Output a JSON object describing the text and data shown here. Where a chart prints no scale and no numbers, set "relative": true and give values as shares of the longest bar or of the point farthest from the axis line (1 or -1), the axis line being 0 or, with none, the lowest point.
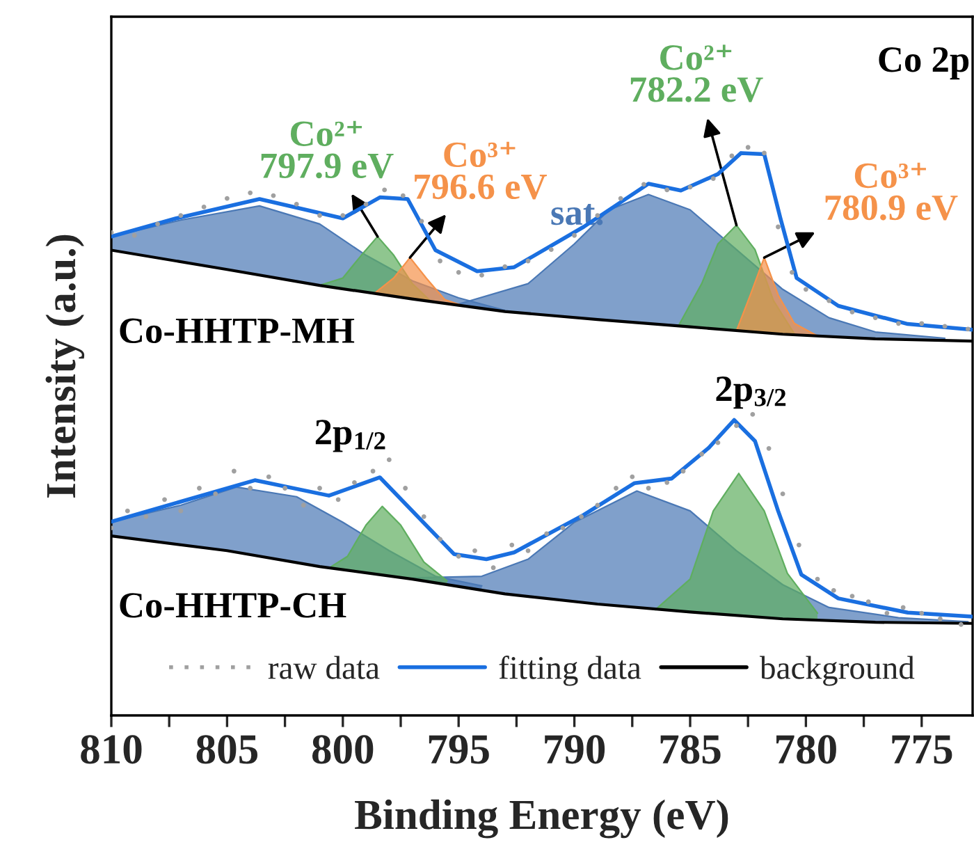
{
  "chart_data": {
    "type": "area",
    "relative": true,
    "xlabel": "Binding Energy (eV)",
    "ylabel": "Intensity (a.u.)",
    "xlim": [
      810,
      772.8
    ],
    "xticks": [
      810,
      {
        "value": 807.5,
        "label": null
      },
      805,
      {
        "value": 802.5,
        "label": null
      },
      800,
      {
        "value": 797.5,
        "label": null
      },
      795,
      {
        "value": 792.5,
        "label": null
      },
      790,
      {
        "value": 787.5,
        "label": null
      },
      785,
      {
        "value": 782.5,
        "label": null
      },
      780,
      {
        "value": 777.5,
        "label": null
      },
      775
    ],
    "tick_labels": "x",
    "grid": false,
    "legend": "bottom",
    "series": [
      {
        "color": "#4a78b5",
        "x": [
          810,
          807,
          803.6,
          801,
          799,
          797,
          795,
          793
        ],
        "values": [
          0.843,
          0.872,
          0.897,
          0.865,
          0.81,
          0.765,
          0.735,
          0.713
        ]
      },
      {
        "color": "#4a78b5",
        "x": [
          795,
          792,
          790,
          788.5,
          786.8,
          785,
          783,
          781,
          779,
          777,
          774
        ],
        "values": [
          0.724,
          0.76,
          0.83,
          0.89,
          0.917,
          0.89,
          0.82,
          0.75,
          0.7,
          0.675,
          0.664
        ]
      },
      {
        "color": "#5fae5f",
        "x": [
          801,
          800,
          799.2,
          798.5,
          797.8,
          797,
          796.2
        ],
        "values": [
          0.757,
          0.77,
          0.81,
          0.843,
          0.81,
          0.76,
          0.729
        ]
      },
      {
        "color": "#f5924a",
        "x": [
          798.6,
          797.8,
          797.1,
          796.4,
          795.6,
          794.8
        ],
        "values": [
          0.744,
          0.77,
          0.806,
          0.77,
          0.732,
          0.721
        ]
      },
      {
        "color": "#5fae5f",
        "x": [
          785.5,
          784.5,
          783.8,
          783,
          782.2,
          781.4,
          780.5
        ],
        "values": [
          0.686,
          0.76,
          0.83,
          0.863,
          0.82,
          0.73,
          0.672
        ]
      },
      {
        "color": "#f5924a",
        "x": [
          783,
          782.4,
          781.8,
          781.2,
          780.5,
          779.5
        ],
        "values": [
          0.677,
          0.74,
          0.806,
          0.74,
          0.69,
          0.668
        ]
      },
      {
        "color": "#4a78b5",
        "x": [
          810,
          807,
          804.6,
          802,
          800,
          798,
          796,
          794
        ],
        "values": [
          0.341,
          0.37,
          0.402,
          0.385,
          0.34,
          0.29,
          0.245,
          0.228
        ]
      },
      {
        "color": "#4a78b5",
        "x": [
          797,
          794,
          792,
          790,
          787.3,
          785,
          783,
          781,
          779,
          776,
          773
        ],
        "values": [
          0.242,
          0.245,
          0.275,
          0.34,
          0.395,
          0.36,
          0.29,
          0.23,
          0.19,
          0.172,
          0.165
        ]
      },
      {
        "color": "#5fae5f",
        "x": [
          800.5,
          799.8,
          799,
          798.3,
          797.5,
          796.5,
          795.5
        ],
        "values": [
          0.262,
          0.28,
          0.335,
          0.368,
          0.335,
          0.27,
          0.237
        ]
      },
      {
        "color": "#5fae5f",
        "x": [
          786.5,
          785,
          784,
          782.9,
          781.8,
          780.8,
          779.5
        ],
        "values": [
          0.186,
          0.24,
          0.36,
          0.426,
          0.36,
          0.25,
          0.18
        ]
      },
      {
        "type": "scatter",
        "name": "raw data",
        "color": "#a0a0a0",
        "x": [
          810,
          809,
          808,
          807,
          806,
          805,
          804,
          803,
          802,
          801,
          800,
          799,
          798.2,
          797.4,
          796.6,
          795.8,
          795,
          794,
          793,
          792,
          791,
          790,
          789,
          788,
          787,
          786,
          785,
          784,
          783.2,
          782.5,
          781.8,
          781.2,
          780.6,
          780,
          779,
          778,
          777,
          776,
          775,
          774,
          773
        ],
        "values": [
          0.85,
          0.845,
          0.865,
          0.88,
          0.895,
          0.91,
          0.92,
          0.915,
          0.9,
          0.88,
          0.88,
          0.9,
          0.925,
          0.915,
          0.87,
          0.8,
          0.78,
          0.775,
          0.79,
          0.8,
          0.82,
          0.845,
          0.88,
          0.91,
          0.935,
          0.925,
          0.93,
          0.945,
          0.985,
          1.0,
          0.99,
          0.86,
          0.78,
          0.75,
          0.73,
          0.71,
          0.7,
          0.69,
          0.69,
          0.685,
          0.68
        ]
      },
      {
        "type": "scatter",
        "color": "#a0a0a0",
        "x": [
          810,
          809.3,
          808.5,
          807.7,
          807,
          806.2,
          805.5,
          804.7,
          804,
          803.2,
          802.5,
          801.7,
          801,
          800.2,
          799.5,
          798.7,
          798,
          797.3,
          796.5,
          795.8,
          795,
          794.3,
          793.5,
          792.7,
          792,
          791.2,
          790.5,
          789.7,
          789,
          788.2,
          787.5,
          786.8,
          786,
          785.3,
          784.5,
          783.8,
          783,
          782.3,
          781.6,
          781,
          780.3,
          779.5,
          778.8,
          778,
          777.3,
          776.5,
          775.8,
          775,
          774.2,
          773.3
        ],
        "values": [
          0.33,
          0.36,
          0.35,
          0.38,
          0.36,
          0.4,
          0.39,
          0.43,
          0.4,
          0.42,
          0.4,
          0.37,
          0.4,
          0.38,
          0.41,
          0.43,
          0.45,
          0.4,
          0.35,
          0.31,
          0.28,
          0.29,
          0.26,
          0.3,
          0.29,
          0.32,
          0.33,
          0.35,
          0.37,
          0.4,
          0.42,
          0.4,
          0.41,
          0.43,
          0.46,
          0.48,
          0.51,
          0.53,
          0.47,
          0.39,
          0.3,
          0.24,
          0.22,
          0.21,
          0.2,
          0.18,
          0.19,
          0.18,
          0.17,
          0.16
        ]
      },
      {
        "type": "line",
        "name": "fitting data",
        "color": "#1a6fe0",
        "x": [
          810,
          807.2,
          803.6,
          800,
          798.4,
          797.2,
          796,
          794.2,
          792.6,
          789.6,
          786.8,
          785.4,
          783.8,
          782.8,
          781.8,
          781.1,
          780.4,
          778.6,
          775.6,
          772.8
        ],
        "values": [
          0.843,
          0.875,
          0.909,
          0.875,
          0.912,
          0.909,
          0.819,
          0.782,
          0.789,
          0.86,
          0.936,
          0.924,
          0.953,
          0.99,
          0.988,
          0.875,
          0.77,
          0.721,
          0.689,
          0.679
        ]
      },
      {
        "type": "line",
        "color": "#1a6fe0",
        "x": [
          810,
          803.8,
          800.6,
          798.4,
          795.2,
          793.8,
          792.6,
          789.6,
          787.4,
          785.8,
          784.2,
          783.1,
          782.2,
          781.2,
          780.2,
          778.6,
          775.6,
          772.8
        ],
        "values": [
          0.341,
          0.414,
          0.387,
          0.419,
          0.284,
          0.275,
          0.287,
          0.353,
          0.409,
          0.417,
          0.471,
          0.52,
          0.483,
          0.36,
          0.248,
          0.206,
          0.181,
          0.174
        ]
      },
      {
        "type": "line",
        "name": "background",
        "color": "#000000",
        "x": [
          810,
          805,
          801,
          797,
          793,
          789,
          785,
          781,
          777,
          772.8
        ],
        "values": [
          0.819,
          0.785,
          0.757,
          0.733,
          0.711,
          0.697,
          0.684,
          0.671,
          0.663,
          0.659
        ]
      },
      {
        "type": "line",
        "color": "#000000",
        "x": [
          810,
          805,
          801,
          797,
          793,
          789,
          785,
          781,
          777,
          772.8
        ],
        "values": [
          0.316,
          0.29,
          0.262,
          0.24,
          0.214,
          0.196,
          0.182,
          0.17,
          0.164,
          0.162
        ]
      }
    ],
    "annotations": [
      "Co 2p",
      {
        "text": "Co²⁺\n797.9 eV",
        "x": 798.5,
        "y": 0.843
      },
      {
        "text": "Co³⁺\n796.6 eV",
        "x": 797.1,
        "y": 0.806
      },
      "sat.",
      {
        "text": "Co²⁺\n782.2 eV",
        "x": 783,
        "y": 0.863
      },
      {
        "text": "Co³⁺\n780.9 eV",
        "x": 781.8,
        "y": 0.806
      },
      "Co-HHTP-MH",
      "2p$_{1/2}$",
      "2p$_{3/2}$",
      "Co-HHTP-CH"
    ]
  }
}
